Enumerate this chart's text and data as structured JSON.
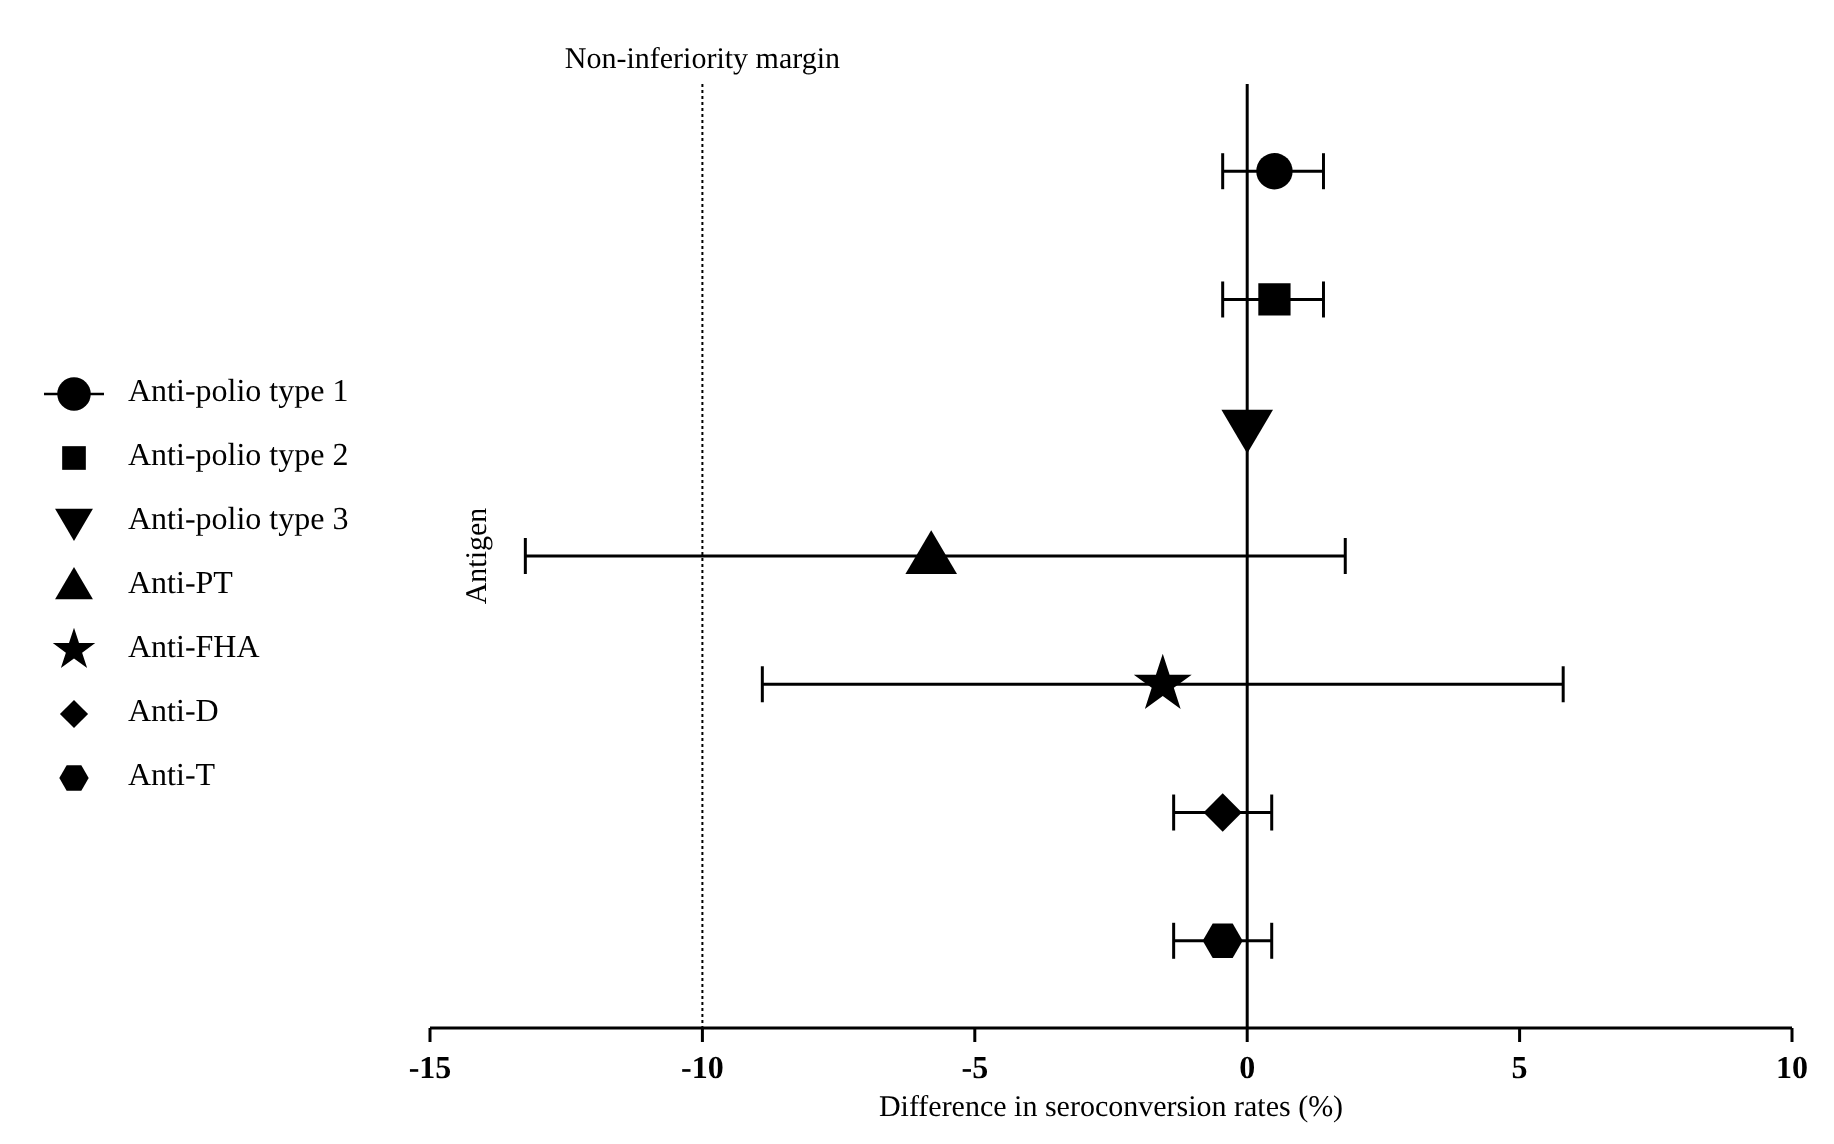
{
  "chart_data": {
    "type": "scatter",
    "orientation": "horizontal",
    "xlabel": "Difference in seroconversion rates (%)",
    "ylabel": "Antigen",
    "categories": [
      null,
      null,
      null,
      null,
      null,
      null,
      null
    ],
    "xlim": [
      -15,
      10
    ],
    "xticks": [
      -15,
      -10,
      -5,
      0,
      5,
      10
    ],
    "grid": false,
    "legend": "left",
    "tick_labels": "x",
    "ref_lines": [
      {
        "axis": "x",
        "value": -10,
        "label": "Non-inferiority margin",
        "color": "#000000",
        "line_style": "dotted"
      }
    ],
    "series": [
      {
        "name": "Anti-polio type 1",
        "color": "#000000",
        "marker": "circle",
        "values": [
          0.5,
          null,
          null,
          null,
          null,
          null,
          null
        ],
        "errors": [
          [
            -0.45,
            1.4
          ],
          null,
          null,
          null,
          null,
          null,
          null
        ]
      },
      {
        "name": "Anti-polio type 2",
        "color": "#000000",
        "marker": "square",
        "values": [
          null,
          0.5,
          null,
          null,
          null,
          null,
          null
        ],
        "errors": [
          null,
          [
            -0.45,
            1.4
          ],
          null,
          null,
          null,
          null,
          null
        ]
      },
      {
        "name": "Anti-polio type 3",
        "color": "#000000",
        "marker": "triangle-down",
        "values": [
          null,
          null,
          0,
          null,
          null,
          null,
          null
        ],
        "errors": [
          null,
          null,
          null,
          null,
          null,
          null,
          null
        ]
      },
      {
        "name": "Anti-PT",
        "color": "#000000",
        "marker": "triangle",
        "values": [
          null,
          null,
          null,
          -5.8,
          null,
          null,
          null
        ],
        "errors": [
          null,
          null,
          null,
          [
            -13.25,
            1.8
          ],
          null,
          null,
          null
        ]
      },
      {
        "name": "Anti-FHA",
        "color": "#000000",
        "marker": "star",
        "values": [
          null,
          null,
          null,
          null,
          -1.55,
          null,
          null
        ],
        "errors": [
          null,
          null,
          null,
          null,
          [
            -8.9,
            5.8
          ],
          null,
          null
        ]
      },
      {
        "name": "Anti-D",
        "color": "#000000",
        "marker": "diamond",
        "values": [
          null,
          null,
          null,
          null,
          null,
          -0.45,
          null
        ],
        "errors": [
          null,
          null,
          null,
          null,
          null,
          [
            -1.35,
            0.45
          ],
          null
        ]
      },
      {
        "name": "Anti-T",
        "color": "#000000",
        "values": [
          null,
          null,
          null,
          null,
          null,
          null,
          -0.45
        ],
        "errors": [
          null,
          null,
          null,
          null,
          null,
          null,
          [
            -1.35,
            0.45
          ]
        ]
      }
    ]
  }
}
